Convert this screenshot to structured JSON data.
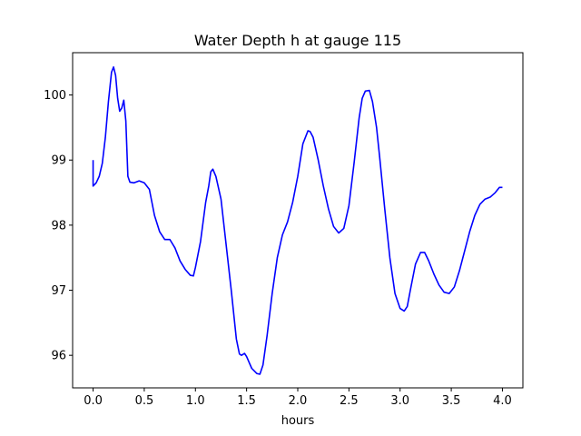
{
  "chart_data": {
    "type": "line",
    "title": "Water Depth h at gauge 115",
    "xlabel": "hours",
    "ylabel": "",
    "xlim": [
      -0.2,
      4.2
    ],
    "ylim": [
      95.5,
      100.65
    ],
    "xticks": [
      0.0,
      0.5,
      1.0,
      1.5,
      2.0,
      2.5,
      3.0,
      3.5,
      4.0
    ],
    "xtick_labels": [
      "0.0",
      "0.5",
      "1.0",
      "1.5",
      "2.0",
      "2.5",
      "3.0",
      "3.5",
      "4.0"
    ],
    "yticks": [
      96,
      97,
      98,
      99,
      100
    ],
    "ytick_labels": [
      "96",
      "97",
      "98",
      "99",
      "100"
    ],
    "grid": false,
    "line_color": "#0000ff",
    "series": [
      {
        "x": [
          0.0,
          0.0,
          0.03,
          0.06,
          0.09,
          0.12,
          0.15,
          0.18,
          0.2,
          0.22,
          0.24,
          0.26,
          0.28,
          0.3,
          0.32,
          0.34,
          0.36,
          0.4,
          0.45,
          0.5,
          0.55,
          0.6,
          0.65,
          0.7,
          0.75,
          0.8,
          0.85,
          0.9,
          0.95,
          0.98,
          1.0,
          1.05,
          1.1,
          1.13,
          1.15,
          1.17,
          1.2,
          1.25,
          1.3,
          1.35,
          1.4,
          1.43,
          1.45,
          1.48,
          1.5,
          1.55,
          1.6,
          1.63,
          1.66,
          1.7,
          1.75,
          1.8,
          1.85,
          1.9,
          1.95,
          2.0,
          2.05,
          2.1,
          2.12,
          2.15,
          2.2,
          2.25,
          2.3,
          2.35,
          2.4,
          2.45,
          2.5,
          2.55,
          2.6,
          2.63,
          2.66,
          2.7,
          2.73,
          2.77,
          2.8,
          2.85,
          2.9,
          2.95,
          3.0,
          3.04,
          3.07,
          3.1,
          3.15,
          3.2,
          3.24,
          3.28,
          3.33,
          3.38,
          3.43,
          3.48,
          3.53,
          3.58,
          3.63,
          3.68,
          3.73,
          3.78,
          3.83,
          3.88,
          3.93,
          3.97,
          4.0
        ],
        "y": [
          99.0,
          98.6,
          98.65,
          98.75,
          98.95,
          99.35,
          99.9,
          100.35,
          100.43,
          100.3,
          99.95,
          99.75,
          99.8,
          99.92,
          99.6,
          98.75,
          98.66,
          98.65,
          98.68,
          98.65,
          98.55,
          98.15,
          97.9,
          97.78,
          97.78,
          97.65,
          97.45,
          97.32,
          97.23,
          97.22,
          97.35,
          97.75,
          98.35,
          98.6,
          98.82,
          98.86,
          98.75,
          98.4,
          97.7,
          97.0,
          96.25,
          96.02,
          96.0,
          96.03,
          95.98,
          95.8,
          95.72,
          95.71,
          95.85,
          96.3,
          96.95,
          97.5,
          97.85,
          98.05,
          98.35,
          98.75,
          99.25,
          99.45,
          99.44,
          99.35,
          99.0,
          98.6,
          98.25,
          97.98,
          97.88,
          97.95,
          98.3,
          98.95,
          99.65,
          99.95,
          100.06,
          100.07,
          99.9,
          99.5,
          99.05,
          98.25,
          97.5,
          96.95,
          96.72,
          96.68,
          96.75,
          97.0,
          97.4,
          97.58,
          97.58,
          97.45,
          97.25,
          97.08,
          96.97,
          96.95,
          97.05,
          97.3,
          97.6,
          97.9,
          98.15,
          98.32,
          98.4,
          98.43,
          98.5,
          98.58,
          98.58
        ]
      }
    ]
  }
}
